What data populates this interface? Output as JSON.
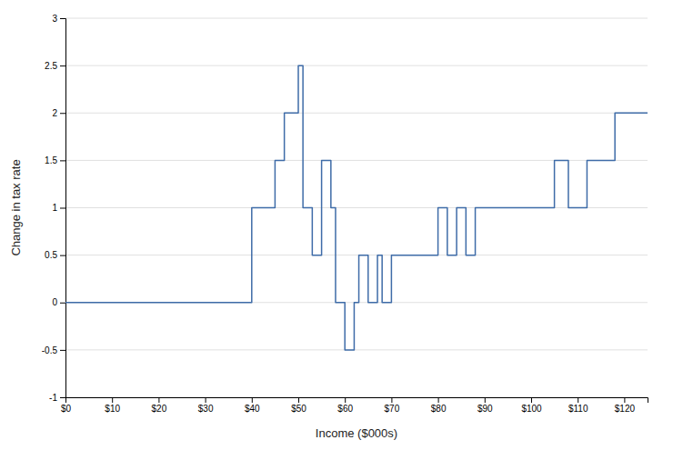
{
  "chart_data": {
    "type": "line",
    "xlabel": "Income ($000s)",
    "ylabel": "Change in tax rate",
    "x": [
      0,
      40,
      40,
      45,
      45,
      47,
      47,
      50,
      50,
      51,
      51,
      53,
      53,
      55,
      55,
      57,
      57,
      58,
      58,
      60,
      60,
      62,
      62,
      63,
      63,
      65,
      65,
      67,
      67,
      68,
      68,
      70,
      70,
      72,
      72,
      75,
      75,
      80,
      80,
      82,
      82,
      84,
      84,
      86,
      86,
      88,
      88,
      90,
      90,
      95,
      95,
      105,
      105,
      108,
      108,
      112,
      112,
      118,
      118,
      125
    ],
    "values": [
      0,
      0,
      1,
      1,
      1.5,
      1.5,
      2,
      2,
      2.5,
      2.5,
      1,
      1,
      0.5,
      0.5,
      1.5,
      1.5,
      1,
      1,
      0,
      0,
      -0.5,
      -0.5,
      0,
      0,
      0.5,
      0.5,
      0,
      0,
      0.5,
      0.5,
      0,
      0,
      0.5,
      0.5,
      0.5,
      0.5,
      0.5,
      0.5,
      1,
      1,
      0.5,
      0.5,
      1,
      1,
      0.5,
      0.5,
      1,
      1,
      1,
      1,
      1,
      1,
      1.5,
      1.5,
      1,
      1,
      1.5,
      1.5,
      2,
      2
    ],
    "color": "#3F6CA8",
    "xlim": [
      0,
      125
    ],
    "ylim": [
      -1,
      3
    ],
    "xticks": [
      {
        "value": 0,
        "label": "$0"
      },
      {
        "value": 10,
        "label": "$10"
      },
      {
        "value": 20,
        "label": "$20"
      },
      {
        "value": 30,
        "label": "$30"
      },
      {
        "value": 40,
        "label": "$40"
      },
      {
        "value": 50,
        "label": "$50"
      },
      {
        "value": 60,
        "label": "$60"
      },
      {
        "value": 70,
        "label": "$70"
      },
      {
        "value": 80,
        "label": "$80"
      },
      {
        "value": 90,
        "label": "$90"
      },
      {
        "value": 100,
        "label": "$100"
      },
      {
        "value": 110,
        "label": "$110"
      },
      {
        "value": 120,
        "label": "$120"
      }
    ],
    "yticks": [
      -1,
      -0.5,
      0,
      0.5,
      1,
      1.5,
      2,
      2.5,
      3
    ],
    "grid": true
  }
}
